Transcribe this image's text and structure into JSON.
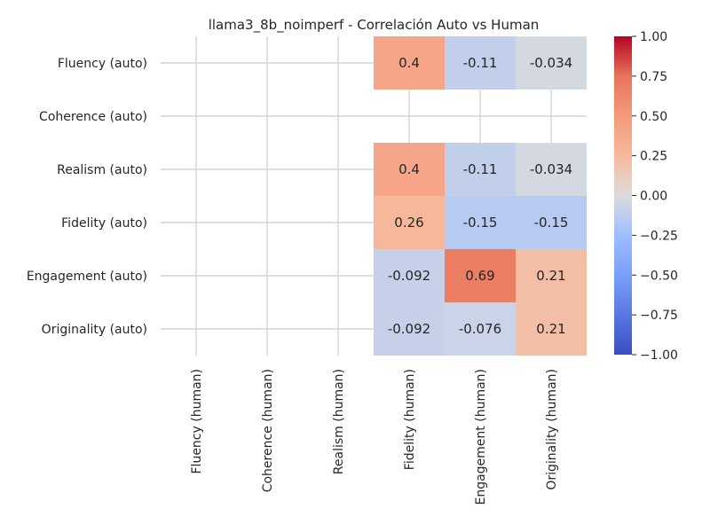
{
  "chart_data": {
    "type": "heatmap",
    "title": "llama3_8b_noimperf - Correlación Auto vs Human",
    "row_labels": [
      "Fluency (auto)",
      "Coherence (auto)",
      "Realism (auto)",
      "Fidelity (auto)",
      "Engagement (auto)",
      "Originality (auto)"
    ],
    "col_labels": [
      "Fluency (human)",
      "Coherence (human)",
      "Realism (human)",
      "Fidelity (human)",
      "Engagement (human)",
      "Originality (human)"
    ],
    "values": [
      [
        null,
        null,
        null,
        0.4,
        -0.11,
        -0.034
      ],
      [
        null,
        null,
        null,
        null,
        null,
        null
      ],
      [
        null,
        null,
        null,
        0.4,
        -0.11,
        -0.034
      ],
      [
        null,
        null,
        null,
        0.26,
        -0.15,
        -0.15
      ],
      [
        null,
        null,
        null,
        -0.092,
        0.69,
        0.21
      ],
      [
        null,
        null,
        null,
        -0.092,
        -0.076,
        0.21
      ]
    ],
    "cell_labels": [
      [
        "",
        "",
        "",
        "0.4",
        "-0.11",
        "-0.034"
      ],
      [
        "",
        "",
        "",
        "",
        "",
        ""
      ],
      [
        "",
        "",
        "",
        "0.4",
        "-0.11",
        "-0.034"
      ],
      [
        "",
        "",
        "",
        "0.26",
        "-0.15",
        "-0.15"
      ],
      [
        "",
        "",
        "",
        "-0.092",
        "0.69",
        "0.21"
      ],
      [
        "",
        "",
        "",
        "-0.092",
        "-0.076",
        "0.21"
      ]
    ],
    "colormap": "coolwarm",
    "vmin": -1,
    "vmax": 1,
    "colorbar_ticks": [
      1.0,
      0.75,
      0.5,
      0.25,
      0.0,
      -0.25,
      -0.5,
      -0.75,
      -1.0
    ],
    "colorbar_tick_labels": [
      "1.00",
      "0.75",
      "0.50",
      "0.25",
      "0.00",
      "−0.25",
      "−0.50",
      "−0.75",
      "−1.00"
    ],
    "grid": true
  }
}
